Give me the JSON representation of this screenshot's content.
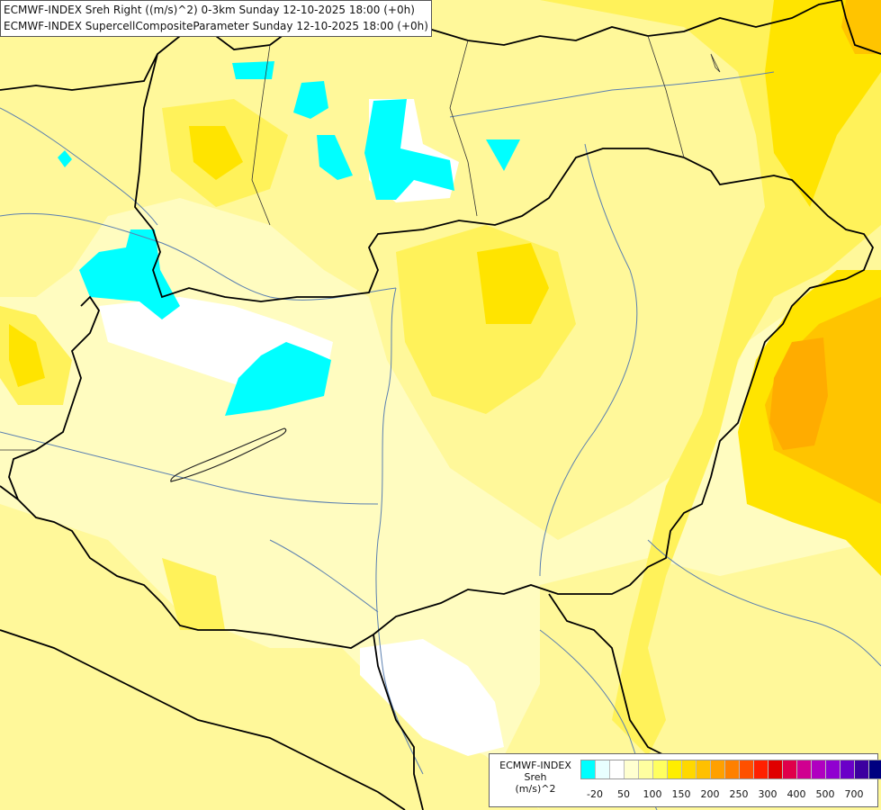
{
  "title": {
    "line1": "ECMWF-INDEX Sreh Right ((m/s)^2) 0-3km Sunday 12-10-2025 18:00 (+0h)",
    "line2": "ECMWF-INDEX SupercellCompositeParameter Sunday 12-10-2025 18:00 (+0h)"
  },
  "legend": {
    "line1": "ECMWF-INDEX",
    "line2": "Sreh",
    "line3": "(m/s)^2",
    "colors": [
      "#00ffff",
      "#e8ffff",
      "#ffffff",
      "#ffffd0",
      "#ffffa0",
      "#ffff60",
      "#ffee00",
      "#ffd800",
      "#ffc000",
      "#ffa000",
      "#ff8000",
      "#ff5000",
      "#ff2000",
      "#e00000",
      "#e0004a",
      "#d00090",
      "#b000c0",
      "#9000d0",
      "#6a00c8",
      "#3c00a0",
      "#000080"
    ],
    "ticks": [
      "-20",
      "50",
      "100",
      "150",
      "200",
      "250",
      "300",
      "400",
      "500",
      "700"
    ]
  }
}
